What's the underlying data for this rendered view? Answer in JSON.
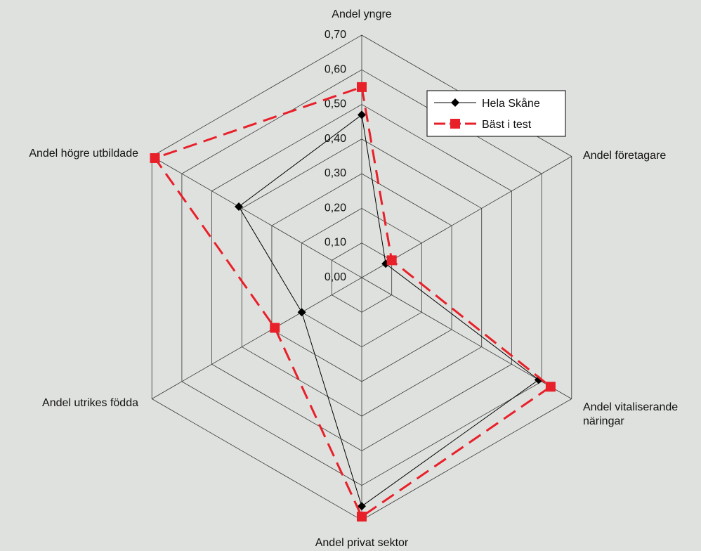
{
  "chart_data": {
    "type": "radar",
    "title": "",
    "axes": [
      {
        "label": "Andel yngre",
        "label_lines": [
          "Andel yngre"
        ]
      },
      {
        "label": "Andel företagare",
        "label_lines": [
          "Andel företagare"
        ]
      },
      {
        "label": "Andel vitaliserande näringar",
        "label_lines": [
          "Andel vitaliserande",
          "näringar"
        ]
      },
      {
        "label": "Andel privat sektor",
        "label_lines": [
          "Andel privat sektor"
        ]
      },
      {
        "label": "Andel utrikes födda",
        "label_lines": [
          "Andel utrikes födda"
        ]
      },
      {
        "label": "Andel högre utbildade",
        "label_lines": [
          "Andel högre utbildade"
        ]
      }
    ],
    "ticks": [
      "0,00",
      "0,10",
      "0,20",
      "0,30",
      "0,40",
      "0,50",
      "0,60",
      "0,70"
    ],
    "rmax": 0.7,
    "series": [
      {
        "name": "Hela Skåne",
        "color": "#000000",
        "marker": "diamond",
        "values": [
          0.47,
          0.08,
          0.59,
          0.66,
          0.2,
          0.41
        ]
      },
      {
        "name": "Bäst i test",
        "color": "#e8202a",
        "marker": "square",
        "dashed": true,
        "values": [
          0.55,
          0.1,
          0.63,
          0.69,
          0.29,
          0.69
        ]
      }
    ],
    "legend": {
      "position": "top-right"
    },
    "grid": true
  }
}
